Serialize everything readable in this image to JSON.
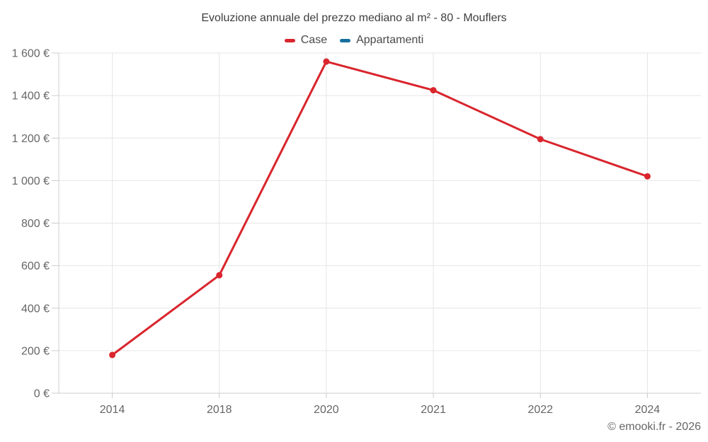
{
  "header": {
    "title": "Evoluzione annuale del prezzo mediano al m² - 80 - Mouflers"
  },
  "legend": {
    "items": [
      {
        "label": "Case",
        "color": "#d9252d"
      },
      {
        "label": "Appartamenti",
        "color": "#176f9e"
      }
    ]
  },
  "chart_data": {
    "type": "line",
    "title": "Evoluzione annuale del prezzo mediano al m² - 80 - Mouflers",
    "categories": [
      "2014",
      "2018",
      "2020",
      "2021",
      "2022",
      "2024"
    ],
    "series": [
      {
        "name": "Case",
        "color": "#d9252d",
        "values": [
          180,
          555,
          1560,
          1425,
          1195,
          1020
        ]
      },
      {
        "name": "Appartamenti",
        "color": "#176f9e",
        "values": []
      }
    ],
    "xlabel": "",
    "ylabel": "",
    "ylim": [
      0,
      1600
    ],
    "ytick_step": 200,
    "yticks": {
      "values": [
        0,
        200,
        400,
        600,
        800,
        1000,
        1200,
        1400,
        1600
      ],
      "labels": [
        "0 €",
        "200 €",
        "400 €",
        "600 €",
        "800 €",
        "1 000 €",
        "1 200 €",
        "1 400 €",
        "1 600 €"
      ]
    },
    "grid": true,
    "legend_position": "top",
    "colors": {
      "gridline": "#e6e6e6",
      "axis": "#cccccc",
      "tick_label": "#666666"
    }
  },
  "footer": {
    "copyright": "© emooki.fr - 2026"
  }
}
